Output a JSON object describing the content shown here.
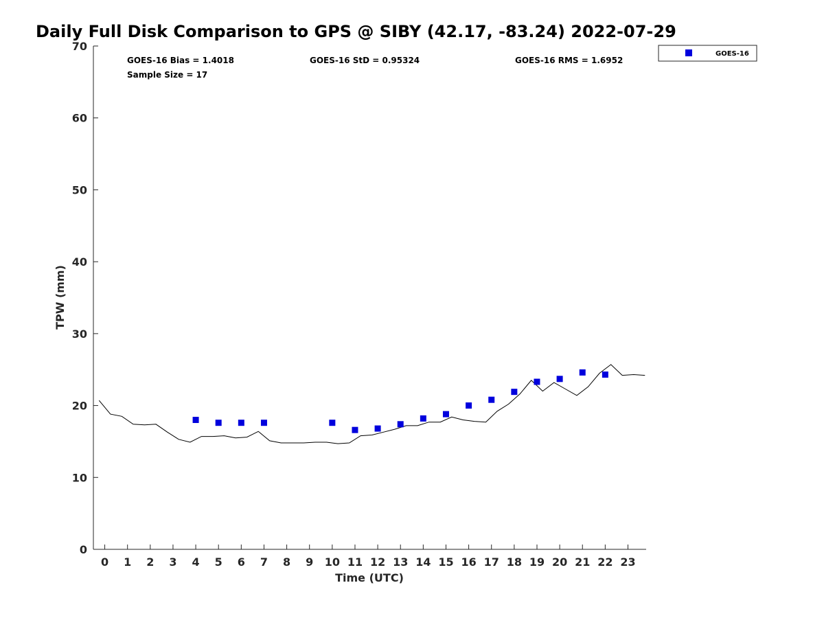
{
  "chart_data": {
    "type": "scatter",
    "title": "Daily Full Disk Comparison to GPS @ SIBY (42.17, -83.24) 2022-07-29",
    "xlabel": "Time (UTC)",
    "ylabel": "TPW (mm)",
    "xlim": [
      -0.5,
      23.8
    ],
    "ylim": [
      0,
      70
    ],
    "x_ticks": [
      "0",
      "1",
      "2",
      "3",
      "4",
      "5",
      "6",
      "7",
      "8",
      "9",
      "10",
      "11",
      "12",
      "13",
      "14",
      "15",
      "16",
      "17",
      "18",
      "19",
      "20",
      "21",
      "22",
      "23"
    ],
    "y_ticks": [
      "0",
      "10",
      "20",
      "30",
      "40",
      "50",
      "60",
      "70"
    ],
    "grid": false,
    "legend_position": "top-right",
    "stats": {
      "bias": "GOES-16 Bias = 1.4018",
      "std": "GOES-16 StD = 0.95324",
      "rms": "GOES-16 RMS = 1.6952",
      "sample": "Sample Size = 17"
    },
    "colors": {
      "goes": "#0000dd",
      "gps": "#000000"
    },
    "series": [
      {
        "name": "GOES-16",
        "kind": "scatter",
        "x": [
          4,
          5,
          6,
          7,
          10,
          11,
          12,
          13,
          14,
          15,
          16,
          17,
          18,
          19,
          20,
          21,
          22
        ],
        "y": [
          18.0,
          17.6,
          17.6,
          17.6,
          17.6,
          16.6,
          16.8,
          17.4,
          18.2,
          18.8,
          20.0,
          20.8,
          21.9,
          23.3,
          23.7,
          24.6,
          24.3
        ]
      },
      {
        "kind": "line",
        "x": [
          -0.25,
          0.25,
          0.75,
          1.25,
          1.75,
          2.25,
          2.75,
          3.25,
          3.75,
          4.25,
          4.75,
          5.25,
          5.75,
          6.25,
          6.75,
          7.25,
          7.75,
          8.25,
          8.75,
          9.25,
          9.75,
          10.25,
          10.75,
          11.25,
          11.75,
          12.25,
          12.75,
          13.25,
          13.75,
          14.25,
          14.75,
          15.25,
          15.75,
          16.25,
          16.75,
          17.25,
          17.75,
          18.25,
          18.75,
          19.25,
          19.75,
          20.25,
          20.75,
          21.25,
          21.75,
          22.25,
          22.75,
          23.25,
          23.75
        ],
        "y": [
          20.7,
          18.8,
          18.5,
          17.4,
          17.3,
          17.4,
          16.3,
          15.3,
          14.9,
          15.7,
          15.7,
          15.8,
          15.5,
          15.6,
          16.4,
          15.1,
          14.8,
          14.8,
          14.8,
          14.9,
          14.9,
          14.7,
          14.8,
          15.8,
          15.9,
          16.3,
          16.7,
          17.2,
          17.2,
          17.7,
          17.7,
          18.4,
          18.0,
          17.8,
          17.7,
          19.2,
          20.2,
          21.6,
          23.5,
          22.0,
          23.2,
          22.3,
          21.4,
          22.6,
          24.5,
          25.7,
          24.2,
          24.3,
          24.2
        ]
      }
    ]
  }
}
